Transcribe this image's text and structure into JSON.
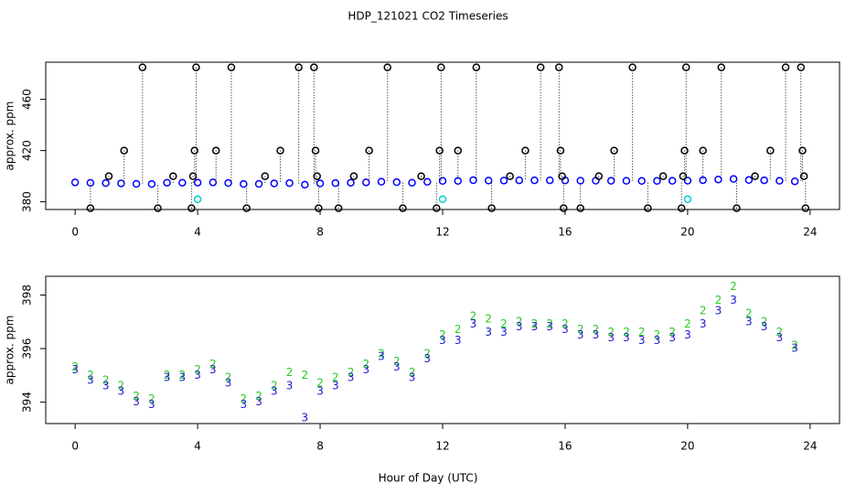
{
  "chart_data": [
    {
      "type": "scatter",
      "title": "HDP_121021  CO2 Timeseries",
      "ylabel": "approx. ppm",
      "xlim": [
        -0.96,
        24.96
      ],
      "xticks": [
        0,
        4,
        8,
        12,
        16,
        20,
        24
      ],
      "ylim": [
        374,
        489
      ],
      "yticks": [
        380,
        420,
        460
      ],
      "series": [
        {
          "color": "#0000ff",
          "marker": "circle",
          "x": [
            0,
            0.5,
            1,
            1.5,
            2,
            2.5,
            3,
            3.5,
            4,
            4.5,
            5,
            5.5,
            6,
            6.5,
            7,
            7.5,
            8,
            8.5,
            9,
            9.5,
            10,
            10.5,
            11,
            11.5,
            12,
            12.5,
            13,
            13.5,
            14,
            14.5,
            15,
            15.5,
            16,
            16.5,
            17,
            17.5,
            18,
            18.5,
            19,
            19.5,
            20,
            20.5,
            21,
            21.5,
            22,
            22.5,
            23,
            23.5
          ],
          "values": [
            395.2,
            394.8,
            394.6,
            394.4,
            394.0,
            393.9,
            394.9,
            394.9,
            395.0,
            395.2,
            394.7,
            393.9,
            394.0,
            394.4,
            394.6,
            393.4,
            394.4,
            394.6,
            394.9,
            395.2,
            395.7,
            395.3,
            394.9,
            395.6,
            396.3,
            396.3,
            396.9,
            396.6,
            396.6,
            396.8,
            396.8,
            396.8,
            396.7,
            396.5,
            396.5,
            396.4,
            396.4,
            396.3,
            396.3,
            396.4,
            396.5,
            396.9,
            397.4,
            397.8,
            397.0,
            396.8,
            396.4,
            396.0
          ]
        },
        {
          "color": "#000000",
          "marker": "circle",
          "drop": true,
          "x": [
            0.5,
            1.1,
            1.6,
            2.2,
            2.7,
            3.2,
            3.8,
            3.85,
            3.9,
            3.95,
            4.6,
            5.1,
            5.6,
            6.2,
            6.7,
            7.3,
            7.8,
            7.85,
            7.9,
            7.95,
            8.6,
            9.1,
            9.6,
            10.2,
            10.7,
            11.3,
            11.8,
            11.9,
            11.95,
            12.5,
            13.1,
            13.6,
            14.2,
            14.7,
            15.2,
            15.8,
            15.85,
            15.9,
            15.95,
            16.5,
            17.1,
            17.6,
            18.2,
            18.7,
            19.2,
            19.8,
            19.85,
            19.9,
            19.95,
            20.5,
            21.1,
            21.6,
            22.2,
            22.7,
            23.2,
            23.7,
            23.75,
            23.8,
            23.85
          ],
          "values": [
            375,
            400,
            420,
            485,
            375,
            400,
            375,
            400,
            420,
            485,
            420,
            485,
            375,
            400,
            420,
            485,
            485,
            420,
            400,
            375,
            375,
            400,
            420,
            485,
            375,
            400,
            375,
            420,
            485,
            420,
            485,
            375,
            400,
            420,
            485,
            485,
            420,
            400,
            375,
            375,
            400,
            420,
            485,
            375,
            400,
            375,
            400,
            420,
            485,
            420,
            485,
            375,
            400,
            420,
            485,
            485,
            420,
            400,
            375
          ]
        },
        {
          "color": "#00cccc",
          "marker": "circle",
          "x": [
            4,
            12,
            20
          ],
          "values": [
            382,
            382,
            382
          ]
        }
      ]
    },
    {
      "type": "scatter",
      "ylabel": "approx. ppm",
      "xlabel": "Hour of Day (UTC)",
      "xlim": [
        -0.96,
        24.96
      ],
      "xticks": [
        0,
        4,
        8,
        12,
        16,
        20,
        24
      ],
      "ylim": [
        393.2,
        398.7
      ],
      "yticks": [
        394,
        396,
        398
      ],
      "series": [
        {
          "color": "#22cc22",
          "marker": "2",
          "x": [
            0,
            0.5,
            1,
            1.5,
            2,
            2.5,
            3,
            3.5,
            4,
            4.5,
            5,
            5.5,
            6,
            6.5,
            7,
            7.5,
            8,
            8.5,
            9,
            9.5,
            10,
            10.5,
            11,
            11.5,
            12,
            12.5,
            13,
            13.5,
            14,
            14.5,
            15,
            15.5,
            16,
            16.5,
            17,
            17.5,
            18,
            18.5,
            19,
            19.5,
            20,
            20.5,
            21,
            21.5,
            22,
            22.5,
            23,
            23.5
          ],
          "values": [
            395.3,
            395.0,
            394.8,
            394.6,
            394.2,
            394.1,
            395.0,
            395.0,
            395.2,
            395.4,
            394.9,
            394.1,
            394.2,
            394.6,
            395.1,
            395.0,
            394.7,
            394.9,
            395.1,
            395.4,
            395.8,
            395.5,
            395.1,
            395.8,
            396.5,
            396.7,
            397.2,
            397.1,
            396.9,
            397.0,
            396.9,
            396.9,
            396.9,
            396.7,
            396.7,
            396.6,
            396.6,
            396.6,
            396.5,
            396.6,
            396.9,
            397.4,
            397.8,
            398.3,
            397.3,
            397.0,
            396.6,
            396.1
          ]
        },
        {
          "color": "#1a1acc",
          "marker": "3",
          "x": [
            0,
            0.5,
            1,
            1.5,
            2,
            2.5,
            3,
            3.5,
            4,
            4.5,
            5,
            5.5,
            6,
            6.5,
            7,
            7.5,
            8,
            8.5,
            9,
            9.5,
            10,
            10.5,
            11,
            11.5,
            12,
            12.5,
            13,
            13.5,
            14,
            14.5,
            15,
            15.5,
            16,
            16.5,
            17,
            17.5,
            18,
            18.5,
            19,
            19.5,
            20,
            20.5,
            21,
            21.5,
            22,
            22.5,
            23,
            23.5
          ],
          "values": [
            395.2,
            394.8,
            394.6,
            394.4,
            394.0,
            393.9,
            394.9,
            394.9,
            395.0,
            395.2,
            394.7,
            393.9,
            394.0,
            394.4,
            394.6,
            393.4,
            394.4,
            394.6,
            394.9,
            395.2,
            395.7,
            395.3,
            394.9,
            395.6,
            396.3,
            396.3,
            396.9,
            396.6,
            396.6,
            396.8,
            396.8,
            396.8,
            396.7,
            396.5,
            396.5,
            396.4,
            396.4,
            396.3,
            396.3,
            396.4,
            396.5,
            396.9,
            397.4,
            397.8,
            397.0,
            396.8,
            396.4,
            396.0
          ]
        }
      ]
    }
  ]
}
